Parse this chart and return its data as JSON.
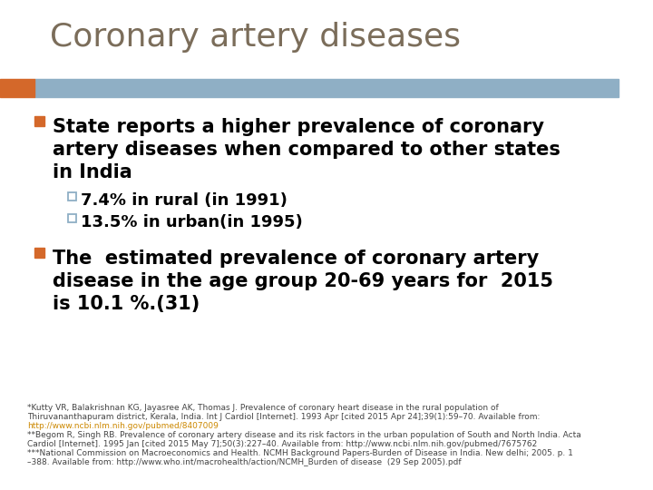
{
  "title": "Coronary artery diseases",
  "title_color": "#7B6D5A",
  "title_fontsize": 26,
  "bg_color": "#FFFFFF",
  "header_bar_color": "#8FAFC5",
  "header_bar_orange": "#D4682A",
  "bullet1_lines": [
    "State reports a higher prevalence of coronary",
    "artery diseases when compared to other states",
    "in India"
  ],
  "sub_bullet1": "7.4% in rural (in 1991)",
  "sub_bullet2": "13.5% in urban(in 1995)",
  "bullet2_lines": [
    "The  estimated prevalence of coronary artery",
    "disease in the age group 20-69 years for  2015",
    "is 10.1 %.(31)"
  ],
  "footnote_line1": "*Kutty VR, Balakrishnan KG, Jayasree AK, Thomas J. Prevalence of coronary heart disease in the rural population of",
  "footnote_line2": "Thiruvananthapuram district, Kerala, India. Int J Cardiol [Internet]. 1993 Apr [cited 2015 Apr 24];39(1):59–70. Available from:",
  "footnote_link1": "http://www.ncbi.nlm.nih.gov/pubmed/8407009",
  "footnote_line3": "**Begom R, Singh RB. Prevalence of coronary artery disease and its risk factors in the urban population of South and North India. Acta",
  "footnote_line4": "Cardiol [Internet]. 1995 Jan [cited 2015 May 7];50(3):227–40. Available from: http://www.ncbi.nlm.nih.gov/pubmed/7675762",
  "footnote_line5": "***National Commission on Macroeconomics and Health. NCMH Background Papers-Burden of Disease in India. New delhi; 2005. p. 1",
  "footnote_line6": "–388. Available from: http://www.who.int/macrohealth/action/NCMH_Burden of disease  (29 Sep 2005).pdf",
  "main_text_color": "#000000",
  "sub_color": "#4A4A4A",
  "footnote_text_color": "#444444",
  "link_color": "#CC8800",
  "main_fontsize": 15,
  "sub_fontsize": 13,
  "footnote_fontsize": 6.5,
  "bullet1_square_color": "#D4682A",
  "bullet2_square_color": "#D4682A",
  "sub_square_color": "#8FAFC5"
}
